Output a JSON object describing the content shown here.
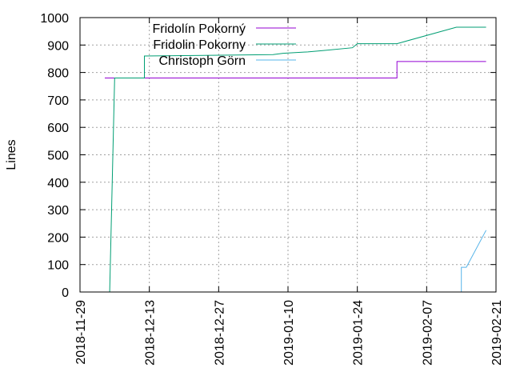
{
  "chart_data": {
    "type": "line",
    "title": "",
    "xlabel": "",
    "ylabel": "Lines",
    "ylim": [
      0,
      1000
    ],
    "yticks": [
      0,
      100,
      200,
      300,
      400,
      500,
      600,
      700,
      800,
      900,
      1000
    ],
    "xlim": [
      "2018-11-29",
      "2019-02-21"
    ],
    "xticks": [
      "2018-11-29",
      "2018-12-13",
      "2018-12-27",
      "2019-01-10",
      "2019-01-24",
      "2019-02-07",
      "2019-02-21"
    ],
    "grid": true,
    "legend_position": "top-center",
    "series": [
      {
        "name": "Fridolín Pokorný",
        "color": "#9400d3",
        "points": [
          [
            "2018-12-04",
            780
          ],
          [
            "2019-02-01",
            780
          ],
          [
            "2019-02-01",
            840
          ],
          [
            "2019-02-19",
            840
          ]
        ]
      },
      {
        "name": "Fridolin Pokorny",
        "color": "#009e73",
        "points": [
          [
            "2018-12-05",
            0
          ],
          [
            "2018-12-06",
            780
          ],
          [
            "2018-12-12",
            780
          ],
          [
            "2018-12-12",
            860
          ],
          [
            "2019-01-07",
            865
          ],
          [
            "2019-01-09",
            870
          ],
          [
            "2019-01-14",
            875
          ],
          [
            "2019-01-17",
            880
          ],
          [
            "2019-01-23",
            890
          ],
          [
            "2019-01-24",
            905
          ],
          [
            "2019-02-01",
            905
          ],
          [
            "2019-02-13",
            965
          ],
          [
            "2019-02-19",
            965
          ]
        ]
      },
      {
        "name": "Christoph Görn",
        "color": "#56b4e9",
        "points": [
          [
            "2019-02-14",
            0
          ],
          [
            "2019-02-14",
            90
          ],
          [
            "2019-02-15",
            90
          ],
          [
            "2019-02-19",
            225
          ]
        ]
      }
    ]
  }
}
